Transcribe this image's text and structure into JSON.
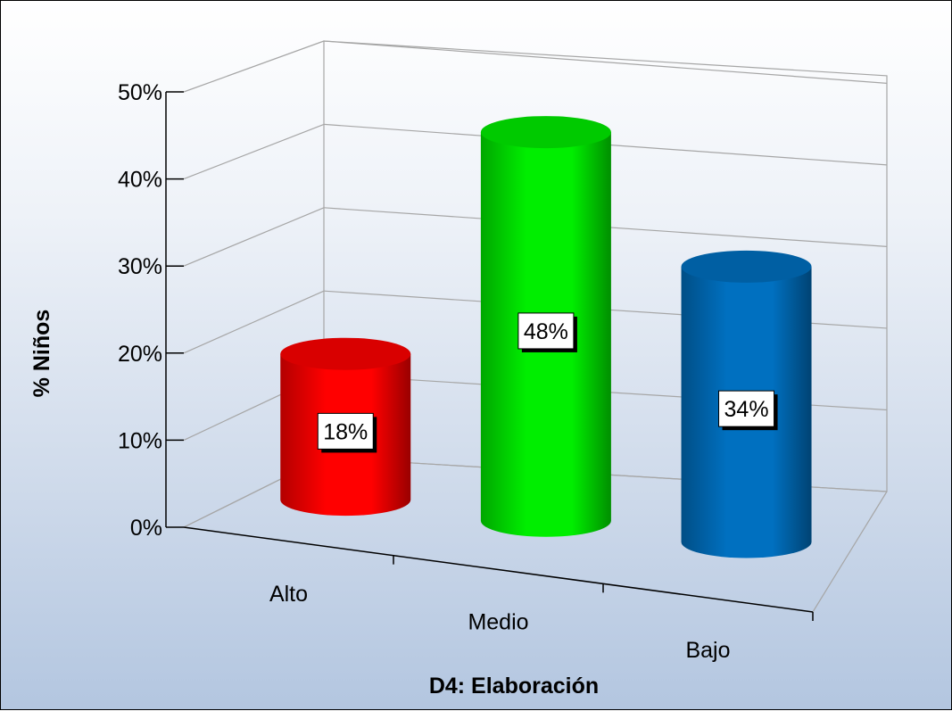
{
  "chart_data": {
    "type": "bar",
    "style": "3d-cylinder",
    "categories": [
      "Alto",
      "Medio",
      "Bajo"
    ],
    "values": [
      18,
      48,
      34
    ],
    "value_labels": [
      "18%",
      "48%",
      "34%"
    ],
    "colors": [
      "#ff0000",
      "#00ee00",
      "#0070c0"
    ],
    "xlabel": "D4: Elaboración",
    "ylabel": "% Niños",
    "ylim": [
      0,
      50
    ],
    "yticks": [
      0,
      10,
      20,
      30,
      40,
      50
    ],
    "ytick_labels": [
      "0%",
      "10%",
      "20%",
      "30%",
      "40%",
      "50%"
    ],
    "grid": true,
    "legend": "none"
  }
}
